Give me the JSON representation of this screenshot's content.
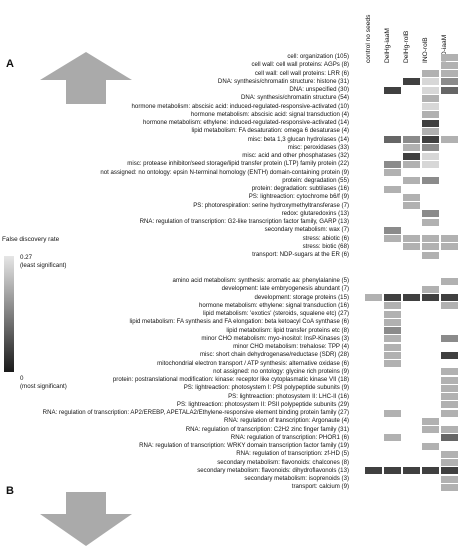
{
  "panels": {
    "a": "A",
    "b": "B"
  },
  "columns": [
    "control no seeds",
    "DelHg-iaaM",
    "DelHg-rolB",
    "INO-rolB",
    "INO-iaaM"
  ],
  "legend": {
    "title": "False discovery rate",
    "top_value": "0.27",
    "top_note": "(least significant)",
    "bottom_value": "0",
    "bottom_note": "(most significant)",
    "scale_light": "#e6e6e6",
    "scale_dark": "#1a1a1a"
  },
  "arrows": {
    "up": "up-arrow",
    "down": "down-arrow",
    "color": "#aaaaaa"
  },
  "chart_data": [
    {
      "type": "heatmap",
      "panel": "A",
      "columns": [
        "control no seeds",
        "DelHg-iaaM",
        "DelHg-rolB",
        "INO-rolB",
        "INO-iaaM"
      ],
      "rows": [
        {
          "label": "cell: organization (105)",
          "values": [
            null,
            null,
            null,
            null,
            0.2
          ]
        },
        {
          "label": "cell wall: cell wall proteins: AGPs (8)",
          "values": [
            null,
            null,
            null,
            null,
            0.2
          ]
        },
        {
          "label": "cell wall: cell wall proteins: LRR (6)",
          "values": [
            null,
            null,
            null,
            0.2,
            0.2
          ]
        },
        {
          "label": "DNA: synthesis/chromatin structure: histone (31)",
          "values": [
            null,
            null,
            0.05,
            0.25,
            0.15
          ]
        },
        {
          "label": "DNA: unspecified (30)",
          "values": [
            null,
            0.05,
            null,
            0.25,
            0.1
          ]
        },
        {
          "label": "DNA: synthesis/chromatin structure (54)",
          "values": [
            null,
            null,
            null,
            0.2,
            null
          ]
        },
        {
          "label": "hormone metabolism: abscisic acid: induced-regulated-responsive-activated (10)",
          "values": [
            null,
            null,
            null,
            0.25,
            null
          ]
        },
        {
          "label": "hormone metabolism: abscisic acid: signal transduction (4)",
          "values": [
            null,
            null,
            null,
            0.2,
            null
          ]
        },
        {
          "label": "hormone metabolism: ethylene: induced-regulated-responsive-activated (14)",
          "values": [
            null,
            null,
            null,
            0.05,
            null
          ]
        },
        {
          "label": "lipid metabolism: FA desaturation: omega 6 desaturase (4)",
          "values": [
            null,
            null,
            null,
            0.2,
            null
          ]
        },
        {
          "label": "misc: beta 1,3 glucan hydrolases (14)",
          "values": [
            null,
            0.1,
            0.15,
            0.05,
            0.2
          ]
        },
        {
          "label": "misc: peroxidases (33)",
          "values": [
            null,
            null,
            0.2,
            0.15,
            null
          ]
        },
        {
          "label": "misc: acid and other phosphatases (32)",
          "values": [
            null,
            null,
            0.05,
            0.25,
            null
          ]
        },
        {
          "label": "misc: protease inhibitor/seed storage/lipid transfer protein (LTP) family protein (22)",
          "values": [
            null,
            0.15,
            0.2,
            0.25,
            null
          ]
        },
        {
          "label": "not assigned: no ontology: epsin N-terminal homology (ENTH) domain-containing protein (9)",
          "values": [
            null,
            0.2,
            null,
            null,
            null
          ]
        },
        {
          "label": "protein: degradation (55)",
          "values": [
            null,
            null,
            0.2,
            0.15,
            null
          ]
        },
        {
          "label": "protein: degradation: subtilases (16)",
          "values": [
            null,
            0.2,
            null,
            null,
            null
          ]
        },
        {
          "label": "PS: lightreaction: cytochrome b6/f (9)",
          "values": [
            null,
            null,
            0.2,
            null,
            null
          ]
        },
        {
          "label": "PS: photorespiration: serine hydroxymethyltransferase (7)",
          "values": [
            null,
            null,
            0.2,
            null,
            null
          ]
        },
        {
          "label": "redox: glutaredoxins (13)",
          "values": [
            null,
            null,
            null,
            0.15,
            null
          ]
        },
        {
          "label": "RNA: regulation of transcription: G2-like transcription factor family, GARP (13)",
          "values": [
            null,
            null,
            null,
            0.2,
            null
          ]
        },
        {
          "label": "secondary metabolism: wax (7)",
          "values": [
            null,
            0.15,
            null,
            null,
            null
          ]
        },
        {
          "label": "stress: abiotic (6)",
          "values": [
            null,
            0.2,
            0.2,
            0.2,
            0.2
          ]
        },
        {
          "label": "stress: biotic (68)",
          "values": [
            null,
            null,
            0.2,
            0.2,
            0.2
          ]
        },
        {
          "label": "transport: NDP-sugars at the ER (6)",
          "values": [
            null,
            null,
            null,
            0.2,
            null
          ]
        }
      ]
    },
    {
      "type": "heatmap",
      "panel": "B",
      "columns": [
        "control no seeds",
        "DelHg-iaaM",
        "DelHg-rolB",
        "INO-rolB",
        "INO-iaaM"
      ],
      "rows": [
        {
          "label": "amino acid metabolism: synthesis: aromatic aa: phenylalanine (5)",
          "values": [
            null,
            null,
            null,
            null,
            0.2
          ]
        },
        {
          "label": "development: late embryogenesis abundant (7)",
          "values": [
            null,
            null,
            null,
            0.2,
            null
          ]
        },
        {
          "label": "development: storage proteins (15)",
          "values": [
            0.2,
            0.05,
            0.05,
            0.05,
            0.05
          ]
        },
        {
          "label": "hormone metabolism: ethylene: signal transduction (16)",
          "values": [
            null,
            0.2,
            null,
            null,
            0.2
          ]
        },
        {
          "label": "lipid metabolism: 'exotics' (steroids, squalene etc) (27)",
          "values": [
            null,
            0.2,
            null,
            null,
            null
          ]
        },
        {
          "label": "lipid metabolism: FA synthesis and FA elongation: beta ketoacyl CoA synthase (6)",
          "values": [
            null,
            0.2,
            null,
            null,
            null
          ]
        },
        {
          "label": "lipid metabolism: lipid transfer proteins etc (8)",
          "values": [
            null,
            0.15,
            null,
            null,
            null
          ]
        },
        {
          "label": "minor CHO metabolism: myo-inositol: InsP-Kinases (3)",
          "values": [
            null,
            0.2,
            null,
            null,
            0.15
          ]
        },
        {
          "label": "minor CHO metabolism: trehalose: TPP (4)",
          "values": [
            null,
            0.2,
            null,
            null,
            null
          ]
        },
        {
          "label": "misc: short chain dehydrogenase/reductase (SDR) (28)",
          "values": [
            null,
            0.2,
            null,
            null,
            0.05
          ]
        },
        {
          "label": "mitochondrial electron transport / ATP synthesis: alternative oxidase (6)",
          "values": [
            null,
            0.2,
            null,
            null,
            null
          ]
        },
        {
          "label": "not assigned: no ontology: glycine rich proteins (9)",
          "values": [
            null,
            null,
            null,
            null,
            0.2
          ]
        },
        {
          "label": "protein: postranslational modification: kinase: receptor like cytoplasmatic kinase VII (18)",
          "values": [
            null,
            null,
            null,
            null,
            0.2
          ]
        },
        {
          "label": "PS: lightreaction: photosystem I: PSI polypeptide subunits (9)",
          "values": [
            null,
            null,
            null,
            null,
            0.2
          ]
        },
        {
          "label": "PS: lightreaction: photosystem II: LHC-II (16)",
          "values": [
            null,
            null,
            null,
            null,
            0.2
          ]
        },
        {
          "label": "PS: lightreaction: photosystem II: PSII polypeptide subunits (29)",
          "values": [
            null,
            null,
            null,
            null,
            0.2
          ]
        },
        {
          "label": "RNA: regulation of transcription: AP2/EREBP, APETALA2/Ethylene-responsive element binding protein family (27)",
          "values": [
            null,
            0.2,
            null,
            null,
            0.2
          ]
        },
        {
          "label": "RNA: regulation of transcription: Argonaute (4)",
          "values": [
            null,
            null,
            null,
            0.2,
            null
          ]
        },
        {
          "label": "RNA: regulation of transcription: C2H2 zinc finger family (31)",
          "values": [
            null,
            null,
            null,
            0.2,
            0.2
          ]
        },
        {
          "label": "RNA: regulation of transcription: PHOR1 (6)",
          "values": [
            null,
            0.2,
            null,
            null,
            0.1
          ]
        },
        {
          "label": "RNA: regulation of transcription: WRKY domain transcription factor family (19)",
          "values": [
            null,
            null,
            null,
            0.2,
            null
          ]
        },
        {
          "label": "RNA: regulation of transcription: zf-HD (5)",
          "values": [
            null,
            null,
            null,
            null,
            0.2
          ]
        },
        {
          "label": "secondary metabolism: flavonoids: chalcones (8)",
          "values": [
            null,
            null,
            null,
            null,
            0.2
          ]
        },
        {
          "label": "secondary metabolism: flavonoids: dihydroflavonols (13)",
          "values": [
            0.05,
            0.05,
            0.05,
            0.05,
            0.05
          ]
        },
        {
          "label": "secondary metabolism: isoprenoids (3)",
          "values": [
            null,
            null,
            null,
            null,
            0.2
          ]
        },
        {
          "label": "transport: calcium (9)",
          "values": [
            null,
            null,
            null,
            null,
            0.2
          ]
        }
      ]
    }
  ]
}
